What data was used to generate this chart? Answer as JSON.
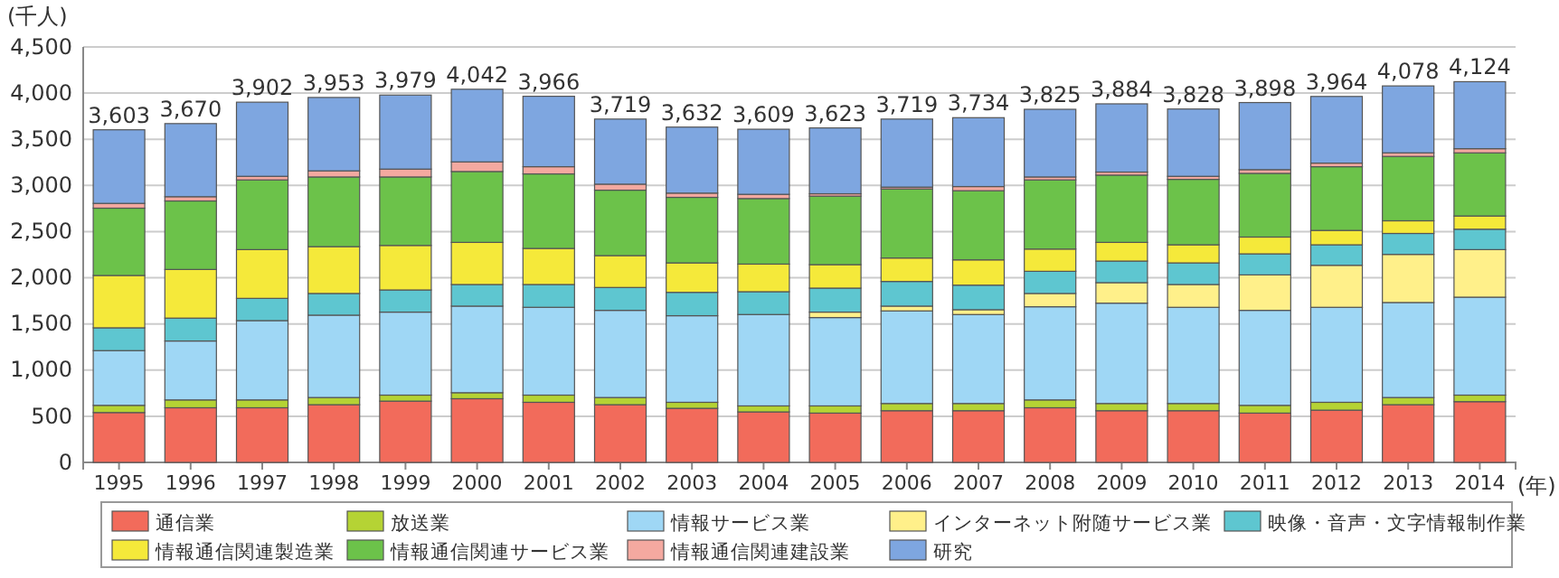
{
  "chart_data": {
    "type": "bar",
    "stacked": true,
    "ylabel": "(千人)",
    "xlabel": "(年)",
    "categories": [
      "1995",
      "1996",
      "1997",
      "1998",
      "1999",
      "2000",
      "2001",
      "2002",
      "2003",
      "2004",
      "2005",
      "2006",
      "2007",
      "2008",
      "2009",
      "2010",
      "2011",
      "2012",
      "2013",
      "2014"
    ],
    "series": [
      {
        "name": "通信業",
        "color": "#f26b5b",
        "values": [
          540,
          592,
          592,
          625,
          664,
          690,
          651,
          625,
          586,
          547,
          534,
          560,
          560,
          592,
          560,
          560,
          534,
          566,
          625,
          658
        ]
      },
      {
        "name": "放送業",
        "color": "#b5d334",
        "values": [
          78,
          85,
          85,
          78,
          65,
          65,
          78,
          78,
          65,
          65,
          78,
          78,
          78,
          85,
          78,
          78,
          84,
          85,
          78,
          71
        ]
      },
      {
        "name": "情報サービス業",
        "color": "#9fd7f5",
        "values": [
          593,
          638,
          859,
          892,
          899,
          938,
          951,
          944,
          938,
          990,
          957,
          1003,
          964,
          1009,
          1087,
          1042,
          1029,
          1029,
          1029,
          1061
        ]
      },
      {
        "name": "インターネット附随サービス業",
        "color": "#fff08a",
        "values": [
          0,
          0,
          0,
          0,
          0,
          0,
          0,
          0,
          0,
          0,
          59,
          52,
          52,
          144,
          222,
          247,
          384,
          455,
          521,
          515
        ]
      },
      {
        "name": "映像・音声・文字情報制作業",
        "color": "#5ec6d0",
        "values": [
          247,
          248,
          241,
          235,
          240,
          234,
          247,
          248,
          253,
          247,
          260,
          267,
          266,
          240,
          234,
          234,
          228,
          222,
          227,
          221
        ]
      },
      {
        "name": "情報通信関連製造業",
        "color": "#f5e93a",
        "values": [
          567,
          527,
          528,
          507,
          482,
          456,
          391,
          345,
          319,
          299,
          254,
          254,
          274,
          241,
          202,
          196,
          182,
          156,
          137,
          143
        ]
      },
      {
        "name": "情報通信関連サービス業",
        "color": "#6cc24a",
        "values": [
          729,
          742,
          755,
          755,
          742,
          768,
          807,
          709,
          710,
          710,
          742,
          748,
          749,
          749,
          729,
          709,
          690,
          690,
          697,
          684
        ]
      },
      {
        "name": "情報通信関連建設業",
        "color": "#f4a9a0",
        "values": [
          52,
          46,
          39,
          66,
          85,
          104,
          78,
          65,
          46,
          46,
          26,
          20,
          45,
          32,
          33,
          33,
          40,
          39,
          39,
          45
        ]
      },
      {
        "name": "研究",
        "color": "#7ea6e0",
        "values": [
          797,
          792,
          803,
          795,
          802,
          787,
          763,
          705,
          715,
          705,
          713,
          737,
          746,
          733,
          739,
          729,
          727,
          722,
          725,
          726
        ]
      }
    ],
    "totals": [
      "3,603",
      "3,670",
      "3,902",
      "3,953",
      "3,979",
      "4,042",
      "3,966",
      "3,719",
      "3,632",
      "3,609",
      "3,623",
      "3,719",
      "3,734",
      "3,825",
      "3,884",
      "3,828",
      "3,898",
      "3,964",
      "4,078",
      "4,124"
    ],
    "ylim": [
      0,
      4500
    ],
    "yticks": [
      0,
      {
        "value": 500,
        "label": "500"
      },
      {
        "value": 1000,
        "label": "1,000"
      },
      {
        "value": 1500,
        "label": "1,500"
      },
      {
        "value": 2000,
        "label": "2,000"
      },
      {
        "value": 2500,
        "label": "2,500"
      },
      {
        "value": 3000,
        "label": "3,000"
      },
      {
        "value": 3500,
        "label": "3,500"
      },
      {
        "value": 4000,
        "label": "4,000"
      },
      {
        "value": 4500,
        "label": "4,500"
      }
    ],
    "grid": "y",
    "legend": "bottom"
  }
}
